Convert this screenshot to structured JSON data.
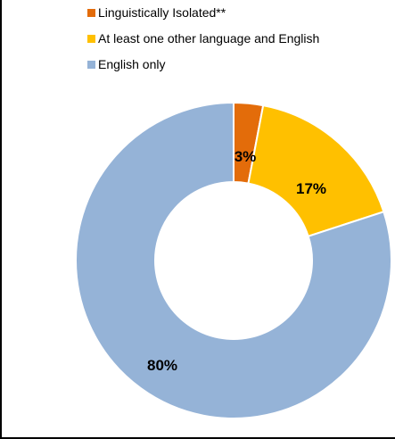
{
  "chart_data": {
    "type": "pie",
    "donut": true,
    "title": "",
    "legend_position": "top",
    "categories": [
      "Linguistically Isolated**",
      "At least one other language and English",
      "English only"
    ],
    "values": [
      3,
      17,
      80
    ],
    "data_labels": [
      "3%",
      "17%",
      "80%"
    ],
    "colors": [
      "#e36c0a",
      "#ffc000",
      "#95b3d7"
    ]
  },
  "legend": {
    "items": [
      {
        "label": "Linguistically Isolated**",
        "color": "#e36c0a"
      },
      {
        "label": "At least one other language and English",
        "color": "#ffc000"
      },
      {
        "label": "English only",
        "color": "#95b3d7"
      }
    ]
  }
}
